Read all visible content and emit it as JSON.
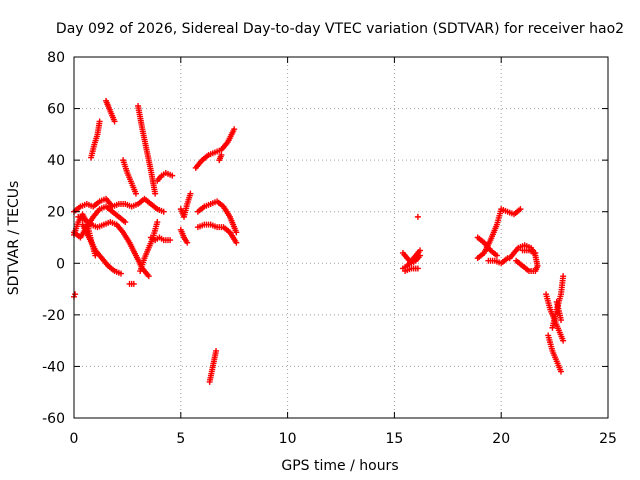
{
  "chart_data": {
    "type": "scatter",
    "title": "Day 092 of 2026, Sidereal Day-to-day VTEC variation (SDTVAR) for receiver hao2",
    "xlabel": "GPS time / hours",
    "ylabel": "SDTVAR / TECUs",
    "xlim": [
      0,
      25
    ],
    "ylim": [
      -60,
      80
    ],
    "x_ticks": [
      0,
      5,
      10,
      15,
      20,
      25
    ],
    "x_tick_labels": [
      "0",
      "5",
      "10",
      "15",
      "20",
      "25"
    ],
    "y_ticks": [
      -60,
      -40,
      -20,
      0,
      20,
      40,
      60,
      80
    ],
    "y_tick_labels": [
      "-60",
      "-40",
      "-20",
      "0",
      "20",
      "40",
      "60",
      "80"
    ],
    "grid": true,
    "marker": "plus",
    "colors": {
      "series": "#ff0000",
      "axis": "#000000",
      "grid": "#a0a0a0"
    },
    "series": [
      {
        "name": "sdtvar",
        "color": "#ff0000",
        "tracks": [
          {
            "x": [
              0.0,
              0.05
            ],
            "y": [
              -13,
              -12
            ]
          },
          {
            "x": [
              0.0,
              0.3,
              0.6,
              0.9,
              1.2,
              1.5,
              1.8,
              2.1,
              2.4,
              2.7,
              3.0,
              3.3,
              3.6,
              3.9,
              4.2
            ],
            "y": [
              20,
              22,
              23,
              22,
              24,
              25,
              22,
              23,
              23,
              22,
              23,
              25,
              23,
              21,
              20
            ]
          },
          {
            "x": [
              0.0,
              0.3,
              0.6,
              0.9,
              1.2,
              1.5,
              1.8,
              2.1,
              2.4
            ],
            "y": [
              12,
              10,
              14,
              18,
              21,
              22,
              20,
              18,
              16
            ]
          },
          {
            "x": [
              0.0,
              0.2,
              0.4,
              0.6,
              0.8,
              1.0
            ],
            "y": [
              11,
              16,
              19,
              16,
              9,
              3
            ]
          },
          {
            "x": [
              0.2,
              0.5,
              0.8,
              1.1,
              1.4,
              1.7,
              2.0,
              2.3,
              2.6,
              2.9,
              3.2,
              3.5
            ],
            "y": [
              18,
              17,
              15,
              14,
              15,
              16,
              15,
              12,
              8,
              3,
              -2,
              -5
            ]
          },
          {
            "x": [
              0.4,
              0.7,
              1.0,
              1.3,
              1.6,
              1.9,
              2.2
            ],
            "y": [
              15,
              10,
              5,
              2,
              -1,
              -3,
              -4
            ]
          },
          {
            "x": [
              0.8,
              0.95,
              1.1,
              1.2
            ],
            "y": [
              41,
              46,
              50,
              55
            ]
          },
          {
            "x": [
              1.5,
              1.6,
              1.75,
              1.9
            ],
            "y": [
              63,
              61,
              58,
              55
            ]
          },
          {
            "x": [
              2.3,
              2.5,
              2.7,
              2.9
            ],
            "y": [
              40,
              35,
              31,
              27
            ]
          },
          {
            "x": [
              2.6,
              2.8
            ],
            "y": [
              -8,
              -8
            ]
          },
          {
            "x": [
              3.0,
              3.2,
              3.4,
              3.6,
              3.8
            ],
            "y": [
              61,
              52,
              44,
              36,
              27
            ]
          },
          {
            "x": [
              3.1,
              3.3,
              3.5,
              3.7,
              3.9
            ],
            "y": [
              -3,
              2,
              6,
              10,
              16
            ]
          },
          {
            "x": [
              3.6,
              3.8,
              4.0,
              4.2,
              4.5
            ],
            "y": [
              10,
              9,
              10,
              9,
              9
            ]
          },
          {
            "x": [
              3.9,
              4.1,
              4.3,
              4.6
            ],
            "y": [
              32,
              34,
              35,
              34
            ]
          },
          {
            "x": [
              5.0,
              5.15,
              5.3,
              5.45
            ],
            "y": [
              21,
              18,
              23,
              27
            ]
          },
          {
            "x": [
              5.0,
              5.15,
              5.3
            ],
            "y": [
              13,
              10,
              8
            ]
          },
          {
            "x": [
              5.7,
              6.0,
              6.3,
              6.6,
              6.9,
              7.2,
              7.5
            ],
            "y": [
              37,
              40,
              42,
              43,
              44,
              47,
              52
            ]
          },
          {
            "x": [
              5.8,
              6.1,
              6.4,
              6.7,
              7.0,
              7.3,
              7.6
            ],
            "y": [
              20,
              22,
              23,
              24,
              22,
              18,
              12
            ]
          },
          {
            "x": [
              5.8,
              6.1,
              6.4,
              6.7,
              7.0,
              7.3,
              7.6
            ],
            "y": [
              14,
              15,
              15,
              14,
              14,
              12,
              8
            ]
          },
          {
            "x": [
              6.8,
              6.9
            ],
            "y": [
              40,
              42
            ]
          },
          {
            "x": [
              6.35,
              6.45,
              6.55,
              6.65
            ],
            "y": [
              -46,
              -42,
              -38,
              -34
            ]
          },
          {
            "x": [
              16.1
            ],
            "y": [
              18
            ]
          },
          {
            "x": [
              15.4,
              15.6,
              15.8,
              16.0,
              16.2
            ],
            "y": [
              4,
              2,
              0,
              1,
              3
            ]
          },
          {
            "x": [
              15.4,
              15.6,
              15.8,
              16.0,
              16.2
            ],
            "y": [
              -2,
              -1,
              1,
              3,
              5
            ]
          },
          {
            "x": [
              15.5,
              15.8,
              16.1
            ],
            "y": [
              -3,
              -2,
              -2
            ]
          },
          {
            "x": [
              18.9,
              19.2,
              19.5,
              19.8
            ],
            "y": [
              10,
              8,
              5,
              3
            ]
          },
          {
            "x": [
              18.9,
              19.2,
              19.5,
              19.8,
              20.0,
              20.3,
              20.6,
              20.9
            ],
            "y": [
              2,
              4,
              9,
              15,
              21,
              20,
              19,
              21
            ]
          },
          {
            "x": [
              19.4,
              19.7,
              20.0,
              20.3
            ],
            "y": [
              1,
              1,
              0,
              2
            ]
          },
          {
            "x": [
              20.4,
              20.6,
              20.8,
              21.1,
              21.4,
              21.6,
              21.7,
              21.6,
              21.3,
              21.0,
              20.7
            ],
            "y": [
              2,
              4,
              6,
              7,
              6,
              3,
              -1,
              -3,
              -3,
              -1,
              1
            ]
          },
          {
            "x": [
              21.0,
              21.3,
              21.6
            ],
            "y": [
              5,
              5,
              4
            ]
          },
          {
            "x": [
              22.1,
              22.3,
              22.5,
              22.7,
              22.9
            ],
            "y": [
              -12,
              -18,
              -22,
              -26,
              -30
            ]
          },
          {
            "x": [
              22.2,
              22.4,
              22.6,
              22.8
            ],
            "y": [
              -28,
              -34,
              -38,
              -42
            ]
          },
          {
            "x": [
              22.4,
              22.6,
              22.8,
              22.9
            ],
            "y": [
              -25,
              -18,
              -12,
              -5
            ]
          },
          {
            "x": [
              22.6,
              22.8
            ],
            "y": [
              -15,
              -22
            ]
          }
        ]
      }
    ]
  }
}
